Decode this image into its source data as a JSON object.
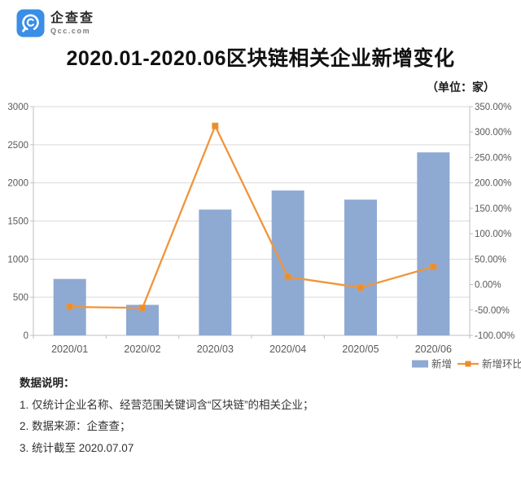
{
  "logo": {
    "brand": "企查查",
    "domain": "Qcc.com"
  },
  "title": "2020.01-2020.06区块链相关企业新增变化",
  "unit_label": "（单位：家）",
  "chart_data": {
    "type": "combo-bar-line",
    "categories": [
      "2020/01",
      "2020/02",
      "2020/03",
      "2020/04",
      "2020/05",
      "2020/06"
    ],
    "series": [
      {
        "name": "新增",
        "type": "bar",
        "axis": "left",
        "values": [
          740,
          400,
          1650,
          1900,
          1780,
          2400
        ]
      },
      {
        "name": "新增环比",
        "type": "line",
        "axis": "right",
        "unit": "%",
        "values": [
          -44,
          -46,
          312,
          15,
          -6,
          35
        ]
      }
    ],
    "left_axis": {
      "min": 0,
      "max": 3000,
      "step": 500
    },
    "right_axis": {
      "min": -100,
      "max": 350,
      "step": 50,
      "format": "percent2"
    },
    "grid": "horizontal",
    "legend_position": "bottom-right"
  },
  "notes": {
    "heading": "数据说明：",
    "items": [
      "1. 仅统计企业名称、经营范围关键词含“区块链”的相关企业；",
      "2. 数据来源：企查查；",
      "3. 统计截至 2020.07.07"
    ]
  },
  "colors": {
    "bar": "#8EA9D2",
    "line": "#F0953A",
    "marker": "#EC8D2B",
    "grid": "#D9D9D9",
    "axis": "#BFBFBF",
    "tick_text": "#595959",
    "brand_blue": "#3A8EE6"
  }
}
